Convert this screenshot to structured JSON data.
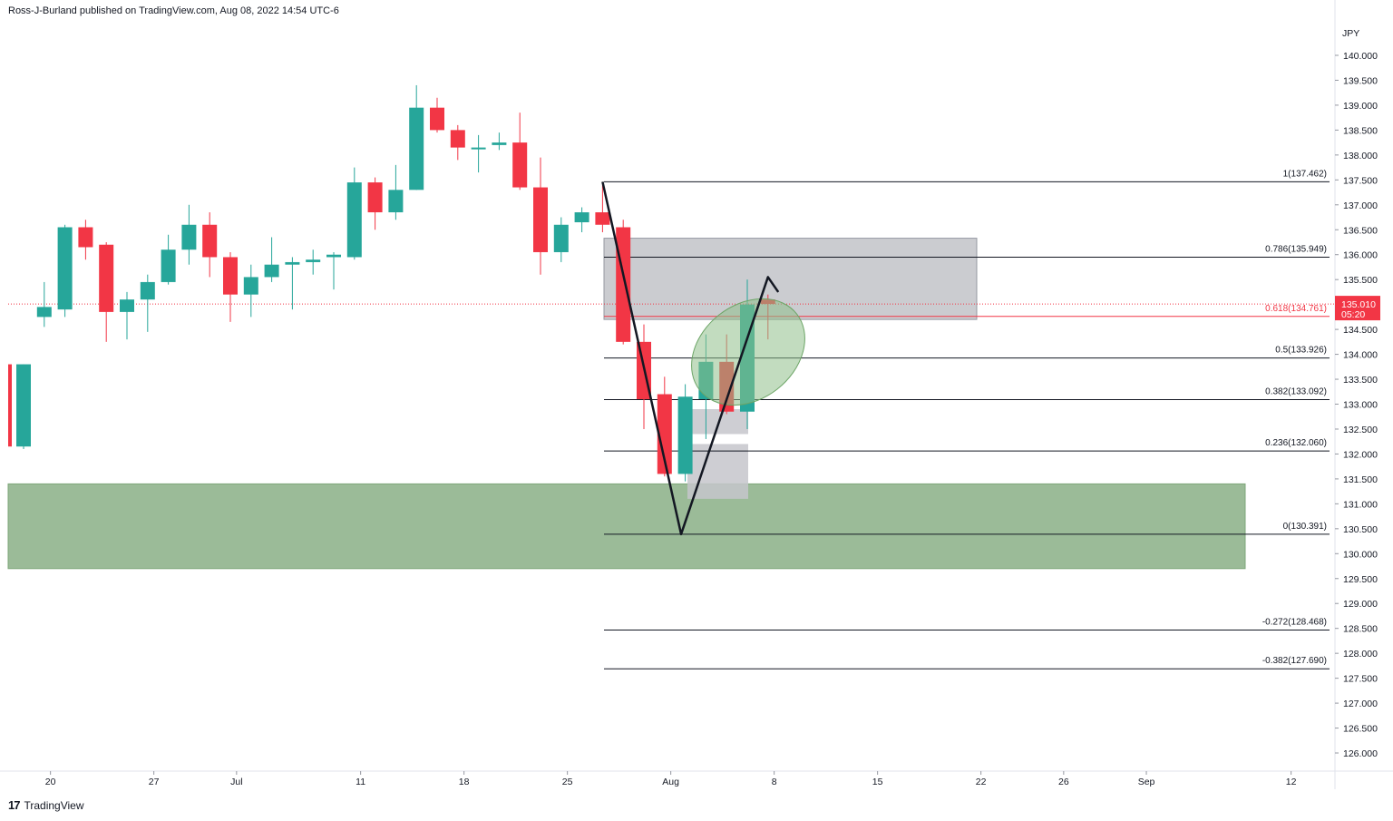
{
  "header": {
    "publisher_line": "Ross-J-Burland published on TradingView.com, Aug 08, 2022 14:54 UTC-6"
  },
  "footer": {
    "brand_text": "TradingView",
    "logo_glyph": "17"
  },
  "chart_data": {
    "type": "candlestick",
    "currency_label": "JPY",
    "ylim": [
      125.6,
      140.5
    ],
    "y_ticks": [
      "126.000",
      "126.500",
      "127.000",
      "127.500",
      "128.000",
      "128.500",
      "129.000",
      "129.500",
      "130.000",
      "130.500",
      "131.000",
      "131.500",
      "132.000",
      "132.500",
      "133.000",
      "133.500",
      "134.000",
      "134.500",
      "135.000",
      "135.500",
      "136.000",
      "136.500",
      "137.000",
      "137.500",
      "138.000",
      "138.500",
      "139.000",
      "139.500",
      "140.000"
    ],
    "x_ticks": [
      {
        "label": "20",
        "bar": 1.3
      },
      {
        "label": "27",
        "bar": 6.3
      },
      {
        "label": "Jul",
        "bar": 10.3
      },
      {
        "label": "11",
        "bar": 16.3
      },
      {
        "label": "18",
        "bar": 21.3
      },
      {
        "label": "25",
        "bar": 26.3
      },
      {
        "label": "Aug",
        "bar": 31.3
      },
      {
        "label": "8",
        "bar": 36.3
      },
      {
        "label": "15",
        "bar": 41.3
      },
      {
        "label": "22",
        "bar": 46.3
      },
      {
        "label": "26",
        "bar": 50.3
      },
      {
        "label": "Sep",
        "bar": 54.3
      },
      {
        "label": "12",
        "bar": 61.3
      }
    ],
    "colors": {
      "up": "#26a69a",
      "down": "#f23645",
      "last_price": "#f23645"
    },
    "candles": [
      {
        "o": 132.15,
        "h": 133.8,
        "l": 132.1,
        "c": 133.8
      },
      {
        "o": 134.75,
        "h": 135.45,
        "l": 134.55,
        "c": 134.95
      },
      {
        "o": 134.9,
        "h": 136.6,
        "l": 134.75,
        "c": 136.55
      },
      {
        "o": 136.55,
        "h": 136.7,
        "l": 135.9,
        "c": 136.15
      },
      {
        "o": 136.2,
        "h": 136.25,
        "l": 134.25,
        "c": 134.85
      },
      {
        "o": 134.85,
        "h": 135.25,
        "l": 134.3,
        "c": 135.1
      },
      {
        "o": 135.1,
        "h": 135.6,
        "l": 134.45,
        "c": 135.45
      },
      {
        "o": 135.45,
        "h": 136.4,
        "l": 135.4,
        "c": 136.1
      },
      {
        "o": 136.1,
        "h": 137.0,
        "l": 135.8,
        "c": 136.6
      },
      {
        "o": 136.6,
        "h": 136.85,
        "l": 135.55,
        "c": 135.95
      },
      {
        "o": 135.95,
        "h": 136.05,
        "l": 134.65,
        "c": 135.2
      },
      {
        "o": 135.2,
        "h": 135.8,
        "l": 134.75,
        "c": 135.55
      },
      {
        "o": 135.55,
        "h": 136.35,
        "l": 135.45,
        "c": 135.8
      },
      {
        "o": 135.8,
        "h": 135.95,
        "l": 134.9,
        "c": 135.85
      },
      {
        "o": 135.85,
        "h": 136.1,
        "l": 135.6,
        "c": 135.9
      },
      {
        "o": 135.95,
        "h": 136.05,
        "l": 135.3,
        "c": 136.0
      },
      {
        "o": 135.95,
        "h": 137.75,
        "l": 135.9,
        "c": 137.45
      },
      {
        "o": 137.45,
        "h": 137.55,
        "l": 136.5,
        "c": 136.85
      },
      {
        "o": 136.85,
        "h": 137.8,
        "l": 136.7,
        "c": 137.3
      },
      {
        "o": 137.3,
        "h": 139.4,
        "l": 137.3,
        "c": 138.95
      },
      {
        "o": 138.95,
        "h": 139.15,
        "l": 138.45,
        "c": 138.5
      },
      {
        "o": 138.5,
        "h": 138.6,
        "l": 137.9,
        "c": 138.15
      },
      {
        "o": 138.15,
        "h": 138.4,
        "l": 137.65,
        "c": 138.15
      },
      {
        "o": 138.2,
        "h": 138.45,
        "l": 138.1,
        "c": 138.25
      },
      {
        "o": 138.25,
        "h": 138.85,
        "l": 137.3,
        "c": 137.35
      },
      {
        "o": 137.35,
        "h": 137.95,
        "l": 135.6,
        "c": 136.05
      },
      {
        "o": 136.05,
        "h": 136.75,
        "l": 135.85,
        "c": 136.6
      },
      {
        "o": 136.65,
        "h": 136.95,
        "l": 136.45,
        "c": 136.85
      },
      {
        "o": 136.85,
        "h": 137.4,
        "l": 136.45,
        "c": 136.6
      },
      {
        "o": 136.55,
        "h": 136.7,
        "l": 134.2,
        "c": 134.25
      },
      {
        "o": 134.25,
        "h": 134.6,
        "l": 132.5,
        "c": 133.1
      },
      {
        "o": 133.2,
        "h": 133.55,
        "l": 131.55,
        "c": 131.6
      },
      {
        "o": 131.6,
        "h": 133.4,
        "l": 131.45,
        "c": 133.15
      },
      {
        "o": 133.1,
        "h": 134.4,
        "l": 132.3,
        "c": 133.85
      },
      {
        "o": 133.85,
        "h": 134.4,
        "l": 132.8,
        "c": 132.85
      },
      {
        "o": 132.85,
        "h": 135.5,
        "l": 132.5,
        "c": 135.0
      },
      {
        "o": 135.1,
        "h": 135.2,
        "l": 134.3,
        "c": 135.01
      }
    ],
    "candles_visible_partial": {
      "o": 133.8,
      "h": 133.8,
      "l": 132.1,
      "c": 132.15
    },
    "fib_levels": [
      {
        "label": "1(137.462)",
        "value": 137.462
      },
      {
        "label": "0.786(135.949)",
        "value": 135.949
      },
      {
        "label": "0.618(134.761)",
        "value": 134.761,
        "color": "#f23645"
      },
      {
        "label": "0.5(133.926)",
        "value": 133.926
      },
      {
        "label": "0.382(133.092)",
        "value": 133.092
      },
      {
        "label": "0.236(132.060)",
        "value": 132.06
      },
      {
        "label": "0(130.391)",
        "value": 130.391
      },
      {
        "label": "-0.272(128.468)",
        "value": 128.468
      },
      {
        "label": "-0.382(127.690)",
        "value": 127.69
      }
    ],
    "gray_zone": {
      "top": 136.33,
      "bottom": 134.7
    },
    "green_zone": {
      "top": 131.4,
      "bottom": 129.7
    },
    "last_price": {
      "value": 135.01,
      "label": "135.010",
      "countdown": "05:20"
    },
    "v_pattern": [
      {
        "bar": 28.0,
        "price": 137.462
      },
      {
        "bar": 31.8,
        "price": 130.391
      },
      {
        "bar": 36.0,
        "price": 135.55
      },
      {
        "bar": 36.5,
        "price": 135.25
      }
    ]
  }
}
